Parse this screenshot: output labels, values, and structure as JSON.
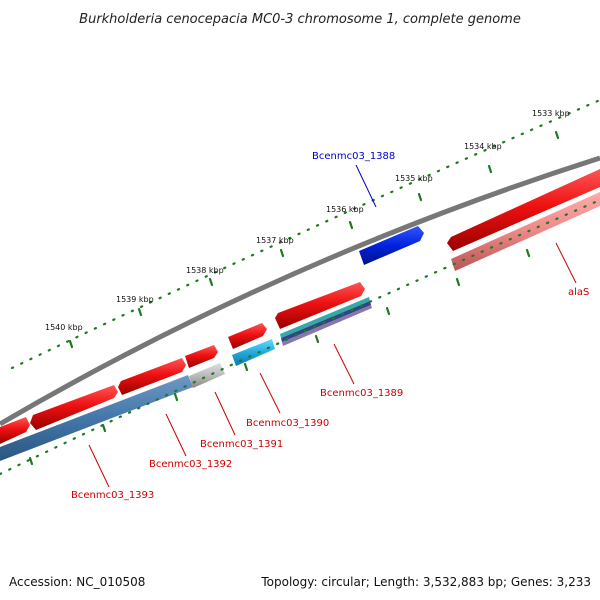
{
  "title": "Burkholderia cenocepacia MC0-3 chromosome 1, complete genome",
  "footer": {
    "accession": "Accession: NC_010508",
    "summary": "Topology: circular; Length: 3,532,883 bp; Genes: 3,233"
  },
  "ruler": [
    "1533 kbp",
    "1534 kbp",
    "1535 kbp",
    "1536 kbp",
    "1537 kbp",
    "1538 kbp",
    "1539 kbp",
    "1540 kbp"
  ],
  "genes": {
    "g1388": "Bcenmc03_1388",
    "alas": "alaS",
    "g1389": "Bcenmc03_1389",
    "g1390": "Bcenmc03_1390",
    "g1391": "Bcenmc03_1391",
    "g1392": "Bcenmc03_1392",
    "g1393": "Bcenmc03_1393"
  },
  "colors": {
    "forward_gene": "#ee1111",
    "reverse_gene": "#0022dd",
    "backbone": "#777777",
    "tick": "#1f7a1f",
    "label_red": "#cc0000",
    "label_blue": "#0000cc",
    "feature_blue": "#4477aa",
    "feature_cyan": "#22aadd",
    "feature_grey": "#bbbbbb",
    "feature_pink": "#ee8888"
  }
}
